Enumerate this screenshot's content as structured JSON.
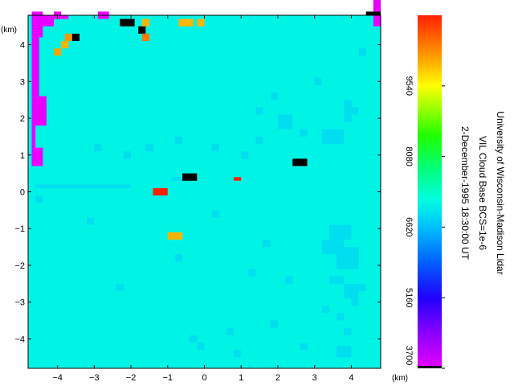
{
  "chart_data": {
    "type": "heatmap",
    "title_lines": [
      "University of Wisconsin-Madison Lidar",
      "VIL Cloud Base BCS=1e-6",
      "2-December-1995 18:30:00 UT"
    ],
    "xlabel": "(km)",
    "ylabel": "(km)",
    "xlim": [
      -4.8,
      4.8
    ],
    "ylim": [
      -4.8,
      4.8
    ],
    "x_ticks": [
      -4,
      -3,
      -2,
      -1,
      0,
      1,
      2,
      3,
      4
    ],
    "y_ticks": [
      4,
      3,
      2,
      1,
      0,
      -1,
      -2,
      -3,
      -4
    ],
    "colorbar": {
      "min": 3700,
      "max": 11000,
      "ticks": [
        3700,
        5160,
        6620,
        8080,
        9540
      ],
      "colormap": "rainbow (magenta to red)",
      "low_color": "#e800ff",
      "high_color": "#ff2000"
    },
    "background_value": 7100,
    "grid_step_km": 0.2,
    "cells": [
      {
        "x": -4.7,
        "y": 4.5,
        "w": 0.6,
        "h": 0.3,
        "value": 3700
      },
      {
        "x": -4.7,
        "y": 4.2,
        "w": 0.3,
        "h": 0.7,
        "value": 3700
      },
      {
        "x": -4.7,
        "y": 3.4,
        "w": 0.2,
        "h": 0.8,
        "value": 3700
      },
      {
        "x": -4.7,
        "y": 2.6,
        "w": 0.2,
        "h": 0.8,
        "value": 3700
      },
      {
        "x": -4.7,
        "y": 1.8,
        "w": 0.4,
        "h": 0.8,
        "value": 3700
      },
      {
        "x": -4.7,
        "y": 0.9,
        "w": 0.1,
        "h": 0.9,
        "value": 3700
      },
      {
        "x": -4.7,
        "y": 0.7,
        "w": 0.3,
        "h": 0.5,
        "value": 3700
      },
      {
        "x": -4.7,
        "y": 0.7,
        "w": 0.3,
        "h": 0.2,
        "value": 3700
      },
      {
        "x": -4.1,
        "y": 4.7,
        "w": 0.2,
        "h": 0.2,
        "value": 3700
      },
      {
        "x": -2.9,
        "y": 4.7,
        "w": 0.3,
        "h": 0.2,
        "value": 3700
      },
      {
        "x": -4.1,
        "y": 4.7,
        "w": 0.4,
        "h": 0.1,
        "value": 3700
      },
      {
        "x": 4.6,
        "y": 4.5,
        "w": 0.2,
        "h": 3.3,
        "value": 3700
      },
      {
        "x": -3.8,
        "y": 4.1,
        "w": 0.2,
        "h": 0.2,
        "value": 10200
      },
      {
        "x": -3.9,
        "y": 3.9,
        "w": 0.2,
        "h": 0.2,
        "value": 10000
      },
      {
        "x": -4.1,
        "y": 3.7,
        "w": 0.2,
        "h": 0.2,
        "value": 10100
      },
      {
        "x": -3.6,
        "y": 4.1,
        "w": 0.2,
        "h": 0.2,
        "value": 3000
      },
      {
        "x": -2.3,
        "y": 4.5,
        "w": 0.4,
        "h": 0.2,
        "value": 3000
      },
      {
        "x": -1.8,
        "y": 4.3,
        "w": 0.2,
        "h": 0.2,
        "value": 3000
      },
      {
        "x": -1.7,
        "y": 4.5,
        "w": 0.2,
        "h": 0.2,
        "value": 10000
      },
      {
        "x": -1.7,
        "y": 4.1,
        "w": 0.2,
        "h": 0.2,
        "value": 10400
      },
      {
        "x": -0.7,
        "y": 4.5,
        "w": 0.4,
        "h": 0.2,
        "value": 10000
      },
      {
        "x": -0.2,
        "y": 4.5,
        "w": 0.2,
        "h": 0.2,
        "value": 10000
      },
      {
        "x": 4.4,
        "y": 4.8,
        "w": 0.4,
        "h": 0.1,
        "value": 3000
      },
      {
        "x": -0.6,
        "y": 0.3,
        "w": 0.4,
        "h": 0.2,
        "value": 3000
      },
      {
        "x": 2.4,
        "y": 0.7,
        "w": 0.4,
        "h": 0.2,
        "value": 3000
      },
      {
        "x": -1.4,
        "y": -0.1,
        "w": 0.4,
        "h": 0.2,
        "value": 11000
      },
      {
        "x": -1.0,
        "y": -1.3,
        "w": 0.4,
        "h": 0.2,
        "value": 10000
      },
      {
        "x": 0.8,
        "y": 0.3,
        "w": 0.2,
        "h": 0.1,
        "value": 11000
      }
    ],
    "speckle_value": 6900,
    "speckle": [
      [
        -4.6,
        0.1,
        1.4,
        0.1
      ],
      [
        -3.2,
        0.1,
        0.8,
        0.1
      ],
      [
        -2.6,
        0.1,
        0.6,
        0.1
      ],
      [
        -0.9,
        0.3,
        0.4,
        0.1
      ],
      [
        -4.6,
        -0.3,
        0.2,
        0.2
      ],
      [
        2.0,
        1.7,
        0.4,
        0.4
      ],
      [
        1.4,
        1.3,
        0.2,
        0.2
      ],
      [
        2.6,
        1.5,
        0.2,
        0.2
      ],
      [
        3.2,
        1.3,
        0.6,
        0.4
      ],
      [
        3.8,
        1.9,
        0.2,
        0.4
      ],
      [
        4.0,
        2.1,
        0.2,
        0.2
      ],
      [
        1.8,
        2.5,
        0.2,
        0.2
      ],
      [
        1.4,
        2.1,
        0.2,
        0.2
      ],
      [
        3.0,
        2.9,
        0.2,
        0.2
      ],
      [
        4.2,
        3.7,
        0.2,
        0.2
      ],
      [
        3.8,
        2.3,
        0.2,
        0.2
      ],
      [
        3.4,
        -1.3,
        0.6,
        0.4
      ],
      [
        3.2,
        -1.7,
        0.6,
        0.4
      ],
      [
        3.6,
        -2.1,
        0.6,
        0.6
      ],
      [
        3.4,
        -2.5,
        0.4,
        0.2
      ],
      [
        3.8,
        -2.9,
        0.4,
        0.4
      ],
      [
        4.2,
        -2.7,
        0.2,
        0.2
      ],
      [
        3.2,
        -3.3,
        0.2,
        0.2
      ],
      [
        3.6,
        -3.5,
        0.2,
        0.2
      ],
      [
        4.0,
        -3.1,
        0.2,
        0.2
      ],
      [
        3.8,
        -3.9,
        0.2,
        0.2
      ],
      [
        3.6,
        -4.5,
        0.4,
        0.3
      ],
      [
        2.6,
        -4.3,
        0.2,
        0.2
      ],
      [
        0.8,
        -4.5,
        0.2,
        0.2
      ],
      [
        -0.4,
        -4.1,
        0.2,
        0.2
      ],
      [
        -0.2,
        -4.3,
        0.2,
        0.2
      ],
      [
        0.6,
        -3.9,
        0.2,
        0.2
      ],
      [
        1.8,
        -3.7,
        0.2,
        0.2
      ],
      [
        2.2,
        -2.5,
        0.2,
        0.2
      ],
      [
        -2.2,
        0.9,
        0.2,
        0.2
      ],
      [
        -0.8,
        1.3,
        0.2,
        0.2
      ],
      [
        -3.0,
        1.1,
        0.2,
        0.2
      ],
      [
        -1.6,
        1.1,
        0.2,
        0.2
      ],
      [
        1.0,
        0.9,
        0.2,
        0.2
      ],
      [
        0.2,
        1.1,
        0.2,
        0.2
      ],
      [
        1.6,
        -1.5,
        0.2,
        0.2
      ],
      [
        -0.8,
        -1.9,
        0.2,
        0.2
      ],
      [
        0.2,
        -0.7,
        0.2,
        0.2
      ],
      [
        -3.2,
        -0.9,
        0.2,
        0.2
      ],
      [
        1.2,
        -2.3,
        0.2,
        0.2
      ],
      [
        -2.4,
        -2.7,
        0.2,
        0.2
      ]
    ]
  }
}
